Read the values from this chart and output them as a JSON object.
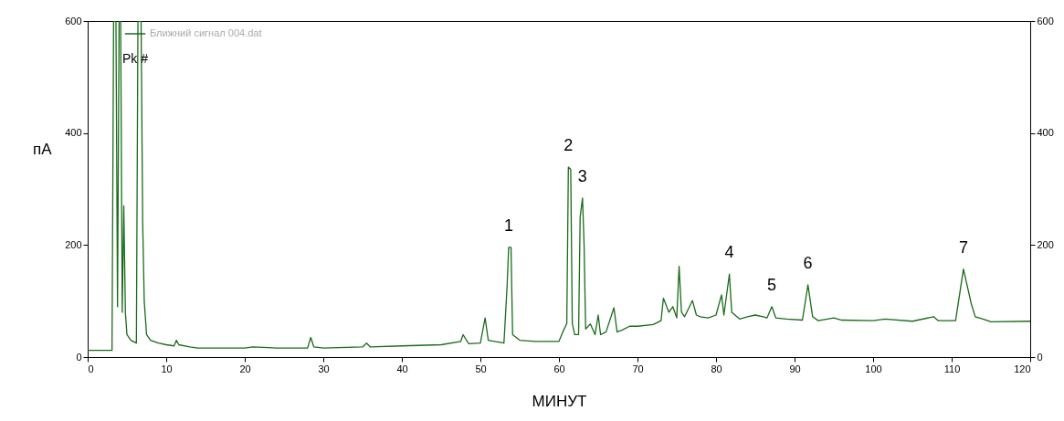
{
  "chart_data": {
    "type": "line",
    "xlabel": "МИНУТ",
    "ylabel": "пА",
    "legend": "top left",
    "grid": false,
    "marker": "none",
    "xlim": [
      0,
      120
    ],
    "xticks": [
      0,
      10,
      20,
      30,
      40,
      50,
      60,
      70,
      80,
      90,
      100,
      110,
      120
    ],
    "ylim": [
      0,
      600
    ],
    "yticks": [
      0,
      200,
      400,
      600
    ],
    "y2lim": [
      0,
      600
    ],
    "y2ticks": [
      0,
      200,
      400,
      600
    ],
    "annotations": [
      "Pk #",
      {
        "text": "1",
        "x": 53.6,
        "y": 196
      },
      {
        "text": "2",
        "x": 61.2,
        "y": 339
      },
      {
        "text": "3",
        "x": 63.0,
        "y": 284
      },
      {
        "text": "4",
        "x": 81.7,
        "y": 148
      },
      {
        "text": "5",
        "x": 87.1,
        "y": 90
      },
      {
        "text": "6",
        "x": 91.7,
        "y": 129
      },
      {
        "text": "7",
        "x": 111.5,
        "y": 157
      }
    ],
    "series": [
      {
        "name": "Ближний сигнал 004.dat",
        "color": "#1a6b1a",
        "x": [
          0,
          3.1,
          3.3,
          3.6,
          3.8,
          4.0,
          4.2,
          4.4,
          4.6,
          4.8,
          5.0,
          5.5,
          6.2,
          6.4,
          6.8,
          7.0,
          7.2,
          7.5,
          8,
          9,
          10,
          11,
          11.3,
          11.6,
          13,
          14,
          20,
          21,
          23,
          24,
          28,
          28.4,
          28.8,
          30,
          35,
          35.5,
          36,
          40,
          45,
          47.5,
          47.8,
          48.5,
          50,
          50.6,
          51,
          53,
          53.4,
          53.6,
          53.9,
          54.1,
          55,
          57,
          60,
          60.5,
          61,
          61.2,
          61.5,
          61.7,
          62,
          62.5,
          62.7,
          63.0,
          63.2,
          63.4,
          64,
          64.6,
          65,
          65.3,
          66,
          67,
          67.4,
          68,
          69,
          70,
          72,
          73,
          73.3,
          74,
          74.5,
          75,
          75.3,
          75.6,
          76,
          77,
          77.5,
          78,
          79,
          80,
          80.7,
          81,
          81.7,
          82,
          83,
          84,
          85,
          86,
          86.5,
          87.1,
          87.6,
          89,
          91,
          91.7,
          92.3,
          93,
          95,
          96,
          100,
          101.5,
          105,
          107.7,
          108.3,
          110.5,
          111.5,
          112.5,
          113,
          114,
          115,
          120
        ],
        "values": [
          12,
          12,
          600,
          600,
          90,
          600,
          600,
          80,
          270,
          80,
          40,
          30,
          25,
          600,
          600,
          243,
          100,
          40,
          30,
          25,
          22,
          20,
          30,
          22,
          18,
          16,
          16,
          18,
          17,
          16,
          16,
          35,
          18,
          16,
          18,
          25,
          18,
          20,
          22,
          28,
          40,
          24,
          25,
          70,
          30,
          25,
          127,
          196,
          196,
          40,
          30,
          28,
          28,
          45,
          60,
          339,
          335,
          60,
          40,
          40,
          250,
          284,
          202,
          50,
          59,
          40,
          75,
          40,
          45,
          88,
          45,
          48,
          55,
          55,
          58,
          65,
          105,
          80,
          90,
          70,
          162,
          80,
          72,
          101,
          75,
          72,
          70,
          75,
          111,
          75,
          148,
          80,
          68,
          72,
          75,
          72,
          70,
          90,
          70,
          68,
          66,
          129,
          72,
          65,
          70,
          66,
          65,
          68,
          64,
          72,
          65,
          65,
          157,
          95,
          72,
          68,
          63,
          64
        ]
      }
    ]
  }
}
